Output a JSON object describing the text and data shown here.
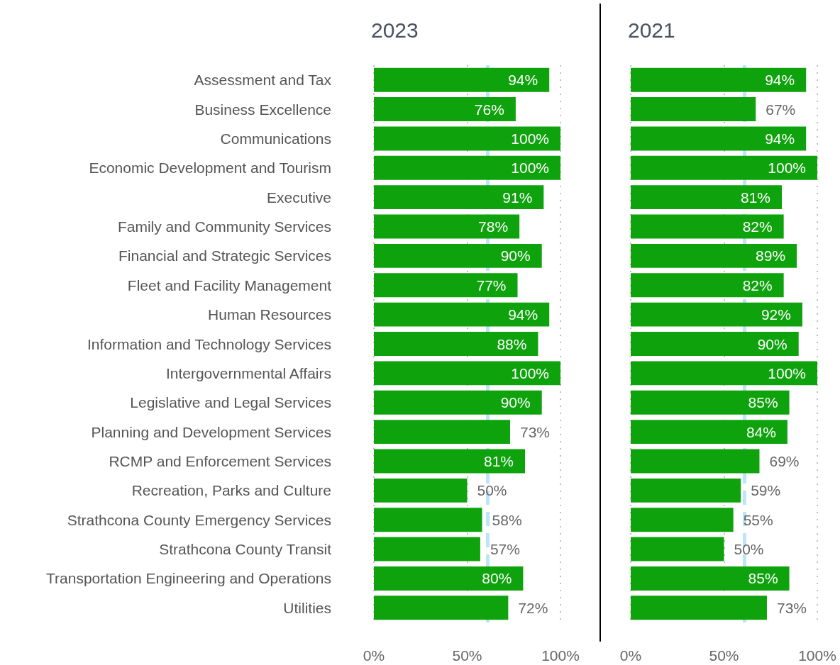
{
  "chart_data": [
    {
      "type": "bar",
      "orientation": "horizontal",
      "title": "2023",
      "categories": [
        "Assessment and Tax",
        "Business Excellence",
        "Communications",
        "Economic Development and Tourism",
        "Executive",
        "Family and Community Services",
        "Financial and Strategic Services",
        "Fleet and Facility Management",
        "Human Resources",
        "Information and Technology Services",
        "Intergovernmental Affairs",
        "Legislative and Legal Services",
        "Planning and Development Services",
        "RCMP and Enforcement Services",
        "Recreation, Parks and Culture",
        "Strathcona County Emergency Services",
        "Strathcona County Transit",
        "Transportation Engineering and Operations",
        "Utilities"
      ],
      "values": [
        94,
        76,
        100,
        100,
        91,
        78,
        90,
        77,
        94,
        88,
        100,
        90,
        73,
        81,
        50,
        58,
        57,
        80,
        72
      ],
      "value_labels": [
        "94%",
        "76%",
        "100%",
        "100%",
        "91%",
        "78%",
        "90%",
        "77%",
        "94%",
        "88%",
        "100%",
        "90%",
        "73%",
        "81%",
        "50%",
        "58%",
        "57%",
        "80%",
        "72%"
      ],
      "color": "#0ea30c",
      "xlim": [
        0,
        100
      ],
      "xticks": [
        {
          "value": 0,
          "label": "0%"
        },
        {
          "value": 50,
          "label": "50%"
        },
        {
          "value": 100,
          "label": "100%"
        }
      ],
      "grid": "x",
      "ref_lines": [
        {
          "axis": "x",
          "value": 61,
          "color": "#bde4f8",
          "line_style": "dashed"
        }
      ]
    },
    {
      "type": "bar",
      "orientation": "horizontal",
      "title": "2021",
      "categories": [
        null,
        null,
        null,
        null,
        null,
        null,
        null,
        null,
        null,
        null,
        null,
        null,
        null,
        null,
        null,
        null,
        null,
        null,
        null
      ],
      "values": [
        94,
        67,
        94,
        100,
        81,
        82,
        89,
        82,
        92,
        90,
        100,
        85,
        84,
        69,
        59,
        55,
        50,
        85,
        73
      ],
      "value_labels": [
        "94%",
        "67%",
        "94%",
        "100%",
        "81%",
        "82%",
        "89%",
        "82%",
        "92%",
        "90%",
        "100%",
        "85%",
        "84%",
        "69%",
        "59%",
        "55%",
        "50%",
        "85%",
        "73%"
      ],
      "color": "#0ea30c",
      "xlim": [
        0,
        100
      ],
      "xticks": [
        {
          "value": 0,
          "label": "0%"
        },
        {
          "value": 50,
          "label": "50%"
        },
        {
          "value": 100,
          "label": "100%"
        }
      ],
      "grid": "x",
      "tick_labels": "x",
      "ref_lines": [
        {
          "axis": "x",
          "value": 61,
          "color": "#bde4f8",
          "line_style": "dashed"
        }
      ]
    }
  ]
}
